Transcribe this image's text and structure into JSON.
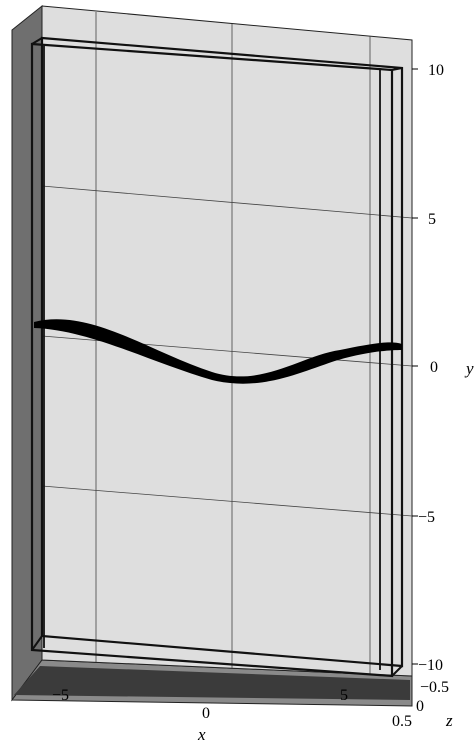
{
  "chart_data": {
    "type": "3d-surface-plot",
    "axes": {
      "x": {
        "label": "x",
        "ticks": [
          "−5",
          "0",
          "5"
        ]
      },
      "y": {
        "label": "y",
        "ticks": [
          "10",
          "5",
          "0",
          "−5",
          "−10"
        ]
      },
      "z": {
        "label": "z",
        "ticks": [
          "−0.5",
          "0",
          "0.5"
        ]
      }
    },
    "grid": true,
    "box_color": "#000000",
    "pane_color": "#dedede",
    "surface_color": "#000000"
  }
}
